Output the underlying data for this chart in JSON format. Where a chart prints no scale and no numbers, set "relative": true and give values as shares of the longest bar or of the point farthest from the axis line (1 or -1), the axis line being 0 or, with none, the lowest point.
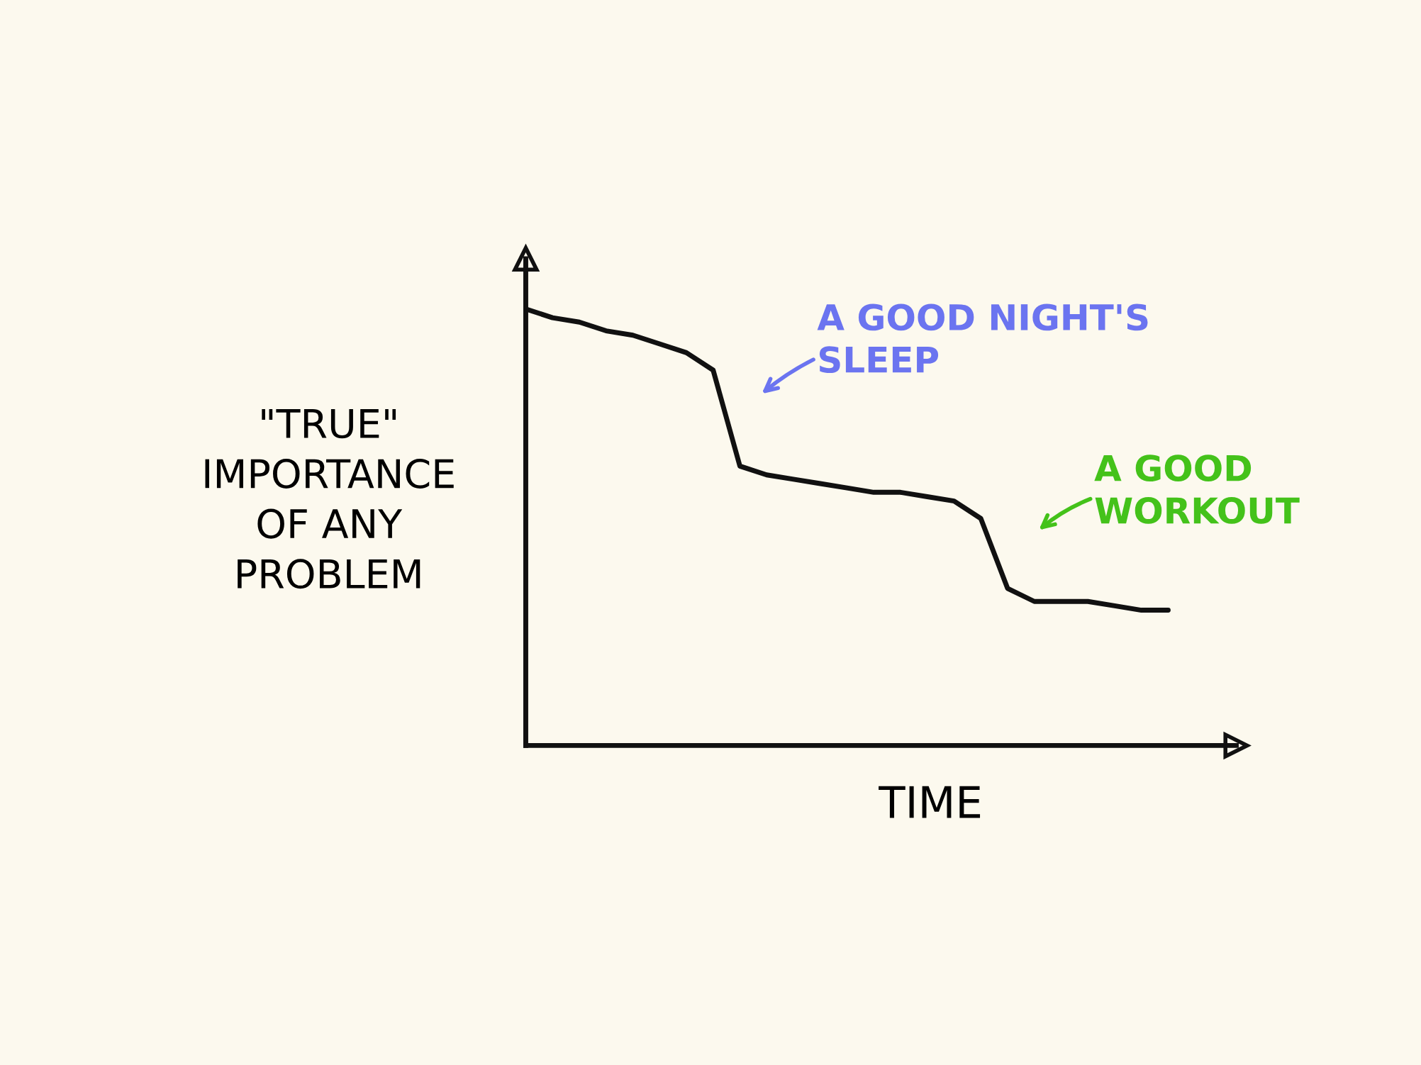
{
  "chart_data": {
    "type": "line",
    "relative": true,
    "tick_labels": false,
    "grid": false,
    "legend": false,
    "marker": "none",
    "line_style": "solid",
    "xlabel": "TIME",
    "ylabel": "\"TRUE\" IMPORTANCE OF ANY PROBLEM",
    "categories": [
      null,
      null,
      null,
      null,
      null,
      null,
      null,
      null,
      null,
      null,
      null,
      null,
      null,
      null,
      null,
      null,
      null,
      null,
      null,
      null,
      null,
      null,
      null,
      null,
      null
    ],
    "series": [
      {
        "color": "#111111",
        "values": [
          1.0,
          0.98,
          0.97,
          0.95,
          0.94,
          0.92,
          0.9,
          0.86,
          0.64,
          0.62,
          0.61,
          0.6,
          0.59,
          0.58,
          0.58,
          0.57,
          0.56,
          0.52,
          0.36,
          0.33,
          0.33,
          0.33,
          0.32,
          0.31,
          0.31
        ]
      }
    ],
    "annotations": [
      "A GOOD NIGHT'S SLEEP",
      "A GOOD WORKOUT"
    ]
  }
}
